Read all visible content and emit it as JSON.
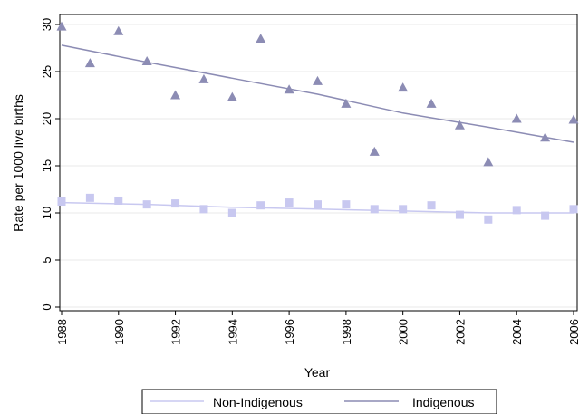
{
  "chart_data": {
    "type": "scatter",
    "xlabel": "Year",
    "ylabel": "Rate per 1000 live births",
    "xlim": [
      1988,
      2006
    ],
    "ylim": [
      0,
      30
    ],
    "xticks": [
      1988,
      1990,
      1992,
      1994,
      1996,
      1998,
      2000,
      2002,
      2004,
      2006
    ],
    "yticks": [
      0,
      5,
      10,
      15,
      20,
      25,
      30
    ],
    "grid": true,
    "legend_position": "bottom",
    "series": [
      {
        "name": "Non-Indigenous",
        "marker": "square",
        "color": "#c8c8f0",
        "x": [
          1988,
          1989,
          1990,
          1991,
          1992,
          1993,
          1994,
          1995,
          1996,
          1997,
          1998,
          1999,
          2000,
          2001,
          2002,
          2003,
          2004,
          2005,
          2006
        ],
        "values": [
          11.2,
          11.6,
          11.3,
          10.9,
          11.0,
          10.4,
          10.0,
          10.8,
          11.1,
          10.9,
          10.9,
          10.4,
          10.4,
          10.8,
          9.8,
          9.3,
          10.3,
          9.7,
          10.4
        ],
        "trend": {
          "x": [
            1988,
            1991,
            1994,
            1997,
            2000,
            2003,
            2006
          ],
          "values": [
            11.1,
            10.9,
            10.6,
            10.4,
            10.2,
            10.0,
            10.0
          ]
        }
      },
      {
        "name": "Indigenous",
        "marker": "triangle",
        "color": "#8c8cb4",
        "x": [
          1988,
          1989,
          1990,
          1991,
          1992,
          1993,
          1994,
          1995,
          1996,
          1997,
          1998,
          1999,
          2000,
          2001,
          2002,
          2003,
          2004,
          2005,
          2006
        ],
        "values": [
          29.8,
          25.9,
          29.3,
          26.1,
          22.5,
          24.2,
          22.3,
          28.5,
          23.1,
          24.0,
          21.6,
          16.5,
          23.3,
          21.6,
          19.3,
          15.4,
          20.0,
          18.0,
          19.9
        ],
        "trend": {
          "x": [
            1988,
            1991,
            1994,
            1997,
            2000,
            2003,
            2006
          ],
          "values": [
            27.8,
            26.0,
            24.3,
            22.6,
            20.6,
            19.1,
            17.5
          ]
        }
      }
    ]
  }
}
